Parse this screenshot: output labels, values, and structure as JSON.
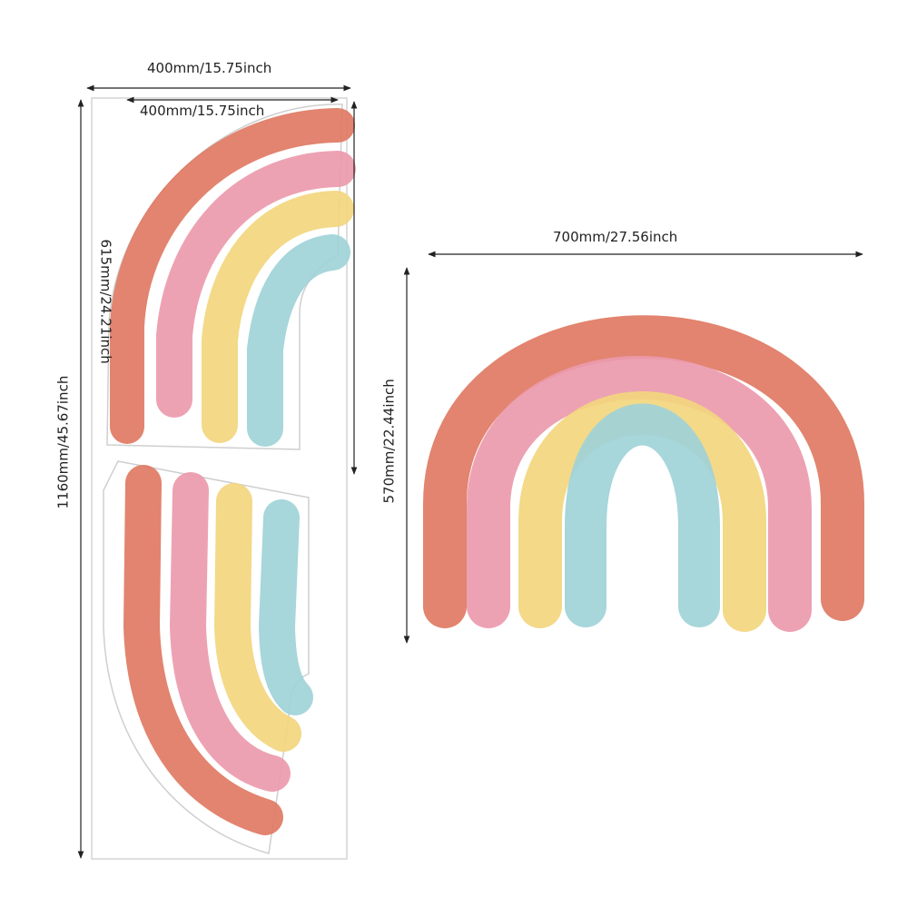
{
  "colors": {
    "background": "#ffffff",
    "coral": "#e07a63",
    "pink": "#ec9aac",
    "yellow": "#f2d67e",
    "teal": "#9fd3d8",
    "outline": "#cfcfcf",
    "dimension_line": "#222222"
  },
  "left_sheet": {
    "width_label_outer": "400mm/15.75inch",
    "width_label_inner": "400mm/15.75inch",
    "height_label_total": "1160mm/45.67inch",
    "height_label_piece": "615mm/24.21inch"
  },
  "right_rainbow": {
    "width_label": "700mm/27.56inch",
    "height_label": "570mm/22.44inch"
  }
}
